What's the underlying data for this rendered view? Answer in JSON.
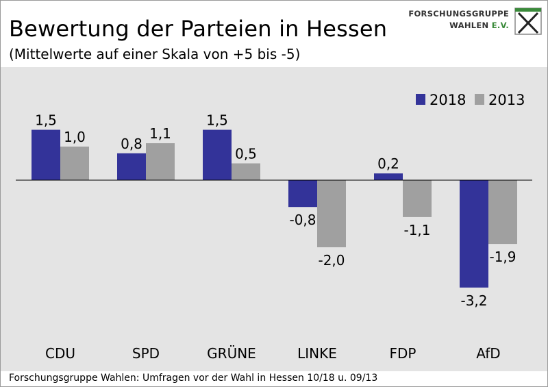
{
  "title": "Bewertung der Parteien in Hessen",
  "subtitle": "(Mittelwerte auf einer Skala von +5 bis -5)",
  "logo": {
    "line1": "FORSCHUNGSGRUPPE",
    "line2a": "WAHLEN ",
    "line2b": "E.V."
  },
  "source": "Forschungsgruppe Wahlen: Umfragen vor der Wahl in Hessen 10/18 u. 09/13",
  "colors": {
    "series_2018": "#333399",
    "series_2013": "#a0a0a0",
    "background": "#e4e4e4",
    "logo_green": "#3a8a3a"
  },
  "chart_data": {
    "type": "bar",
    "categories": [
      "CDU",
      "SPD",
      "GRÜNE",
      "LINKE",
      "FDP",
      "AfD"
    ],
    "series": [
      {
        "name": "2018",
        "values": [
          1.5,
          0.8,
          1.5,
          -0.8,
          0.2,
          -3.2
        ],
        "labels": [
          "1,5",
          "0,8",
          "1,5",
          "-0,8",
          "0,2",
          "-3,2"
        ]
      },
      {
        "name": "2013",
        "values": [
          1.0,
          1.1,
          0.5,
          -2.0,
          -1.1,
          -1.9
        ],
        "labels": [
          "1,0",
          "1,1",
          "0,5",
          "-2,0",
          "-1,1",
          "-1,9"
        ]
      }
    ],
    "title": "Bewertung der Parteien in Hessen",
    "subtitle": "(Mittelwerte auf einer Skala von +5 bis -5)",
    "legend_position": "top-right",
    "grid": false
  }
}
